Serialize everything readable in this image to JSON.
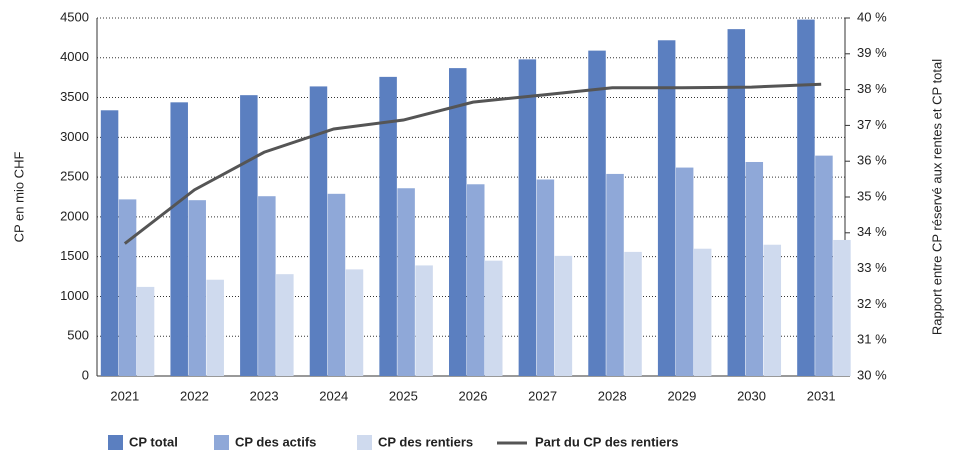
{
  "chart_data": {
    "type": "bar",
    "y_label": "CP en mio CHF",
    "y2_label": "Rapport entre CP réservé aux rentes et CP total",
    "categories": [
      "2021",
      "2022",
      "2023",
      "2024",
      "2025",
      "2026",
      "2027",
      "2028",
      "2029",
      "2030",
      "2031"
    ],
    "series": [
      {
        "name": "CP total",
        "color": "#5b7fc0",
        "values": [
          3340,
          3440,
          3530,
          3640,
          3760,
          3870,
          3980,
          4090,
          4220,
          4360,
          4480
        ]
      },
      {
        "name": "CP des actifs",
        "color": "#8fa8d8",
        "values": [
          2220,
          2210,
          2260,
          2290,
          2360,
          2410,
          2470,
          2540,
          2620,
          2690,
          2770
        ]
      },
      {
        "name": "CP des rentiers",
        "color": "#cfdaee",
        "values": [
          1120,
          1210,
          1280,
          1340,
          1390,
          1450,
          1510,
          1560,
          1600,
          1650,
          1710
        ]
      },
      {
        "name": "Part du CP des rentiers",
        "color": "#555555",
        "type": "line",
        "axis": "y2",
        "values": [
          33.7,
          35.2,
          36.25,
          36.9,
          37.15,
          37.65,
          37.85,
          38.05,
          38.05,
          38.07,
          38.15
        ]
      }
    ],
    "ylim": [
      0,
      4500
    ],
    "yticks": [
      0,
      500,
      1000,
      1500,
      2000,
      2500,
      3000,
      3500,
      4000,
      4500
    ],
    "y2lim": [
      30,
      40
    ],
    "y2ticks": [
      {
        "value": 30,
        "label": "30 %"
      },
      {
        "value": 31,
        "label": "31 %"
      },
      {
        "value": 32,
        "label": "32 %"
      },
      {
        "value": 33,
        "label": "33 %"
      },
      {
        "value": 34,
        "label": "34 %"
      },
      {
        "value": 35,
        "label": "35 %"
      },
      {
        "value": 36,
        "label": "36 %"
      },
      {
        "value": 37,
        "label": "37 %"
      },
      {
        "value": 38,
        "label": "38 %"
      },
      {
        "value": 39,
        "label": "39 %"
      },
      {
        "value": 40,
        "label": "40 %"
      }
    ],
    "grid": true,
    "legend": "bottom"
  }
}
